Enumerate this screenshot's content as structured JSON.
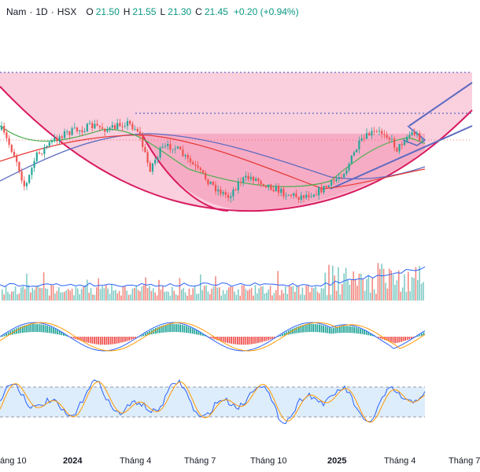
{
  "header": {
    "symbol": "Nam",
    "interval": "1D",
    "exchange": "HSX",
    "open_key": "O",
    "open": "21.50",
    "high_key": "H",
    "high": "21.55",
    "low_key": "L",
    "low": "21.30",
    "close_key": "C",
    "close": "21.45",
    "change": "+0.20 (+0.94%)"
  },
  "x_axis": [
    {
      "label": "áng 10",
      "bold": false
    },
    {
      "label": "2024",
      "bold": true
    },
    {
      "label": "Tháng 4",
      "bold": false
    },
    {
      "label": "Tháng 7",
      "bold": false
    },
    {
      "label": "Tháng 10",
      "bold": false
    },
    {
      "label": "2025",
      "bold": true
    },
    {
      "label": "Tháng 4",
      "bold": false
    },
    {
      "label": "Tháng 7",
      "bold": false
    }
  ],
  "colors": {
    "up": "#26a69a",
    "down": "#ef5350",
    "pattern_fill": "#f8bbd0",
    "pattern_stroke": "#d81b60",
    "ma_short": "#4caf50",
    "ma_mid": "#e53935",
    "ma_long": "#5c6bc0",
    "macd": "#2962ff",
    "signal": "#ff9800",
    "stoch_band": "#d6e9fb"
  },
  "chart_data": {
    "type": "candlestick",
    "panes": [
      "price",
      "volume",
      "macd",
      "stochastic"
    ],
    "last_bar": {
      "open": 21.5,
      "high": 21.55,
      "low": 21.3,
      "close": 21.45,
      "change": 0.2,
      "change_pct": 0.94
    },
    "x_labels": [
      "áng 10",
      "2024",
      "Tháng 4",
      "Tháng 7",
      "Tháng 10",
      "2025",
      "Tháng 4",
      "Tháng 7"
    ]
  }
}
